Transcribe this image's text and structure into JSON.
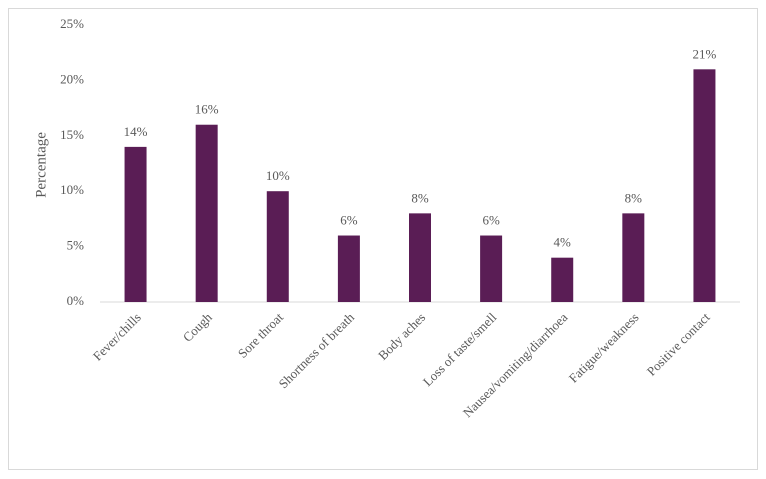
{
  "chart_data": {
    "type": "bar",
    "y_label": "Percentage",
    "categories": [
      "Fever/chills",
      "Cough",
      "Sore throat",
      "Shortness of breath",
      "Body aches",
      "Loss of taste/smell",
      "Nausea/vomiting/diarrhoea",
      "Fatigue/weakness",
      "Positive contact"
    ],
    "values": [
      14,
      16,
      10,
      6,
      8,
      6,
      4,
      8,
      21
    ],
    "value_labels": [
      "14%",
      "16%",
      "10%",
      "6%",
      "8%",
      "6%",
      "4%",
      "8%",
      "21%"
    ],
    "color": "#5a1d55",
    "ylim": [
      0,
      25
    ],
    "yticks": [
      {
        "value": 0,
        "label": "0%"
      },
      {
        "value": 5,
        "label": "5%"
      },
      {
        "value": 10,
        "label": "10%"
      },
      {
        "value": 15,
        "label": "15%"
      },
      {
        "value": 20,
        "label": "20%"
      },
      {
        "value": 25,
        "label": "25%"
      }
    ],
    "grid": false
  }
}
